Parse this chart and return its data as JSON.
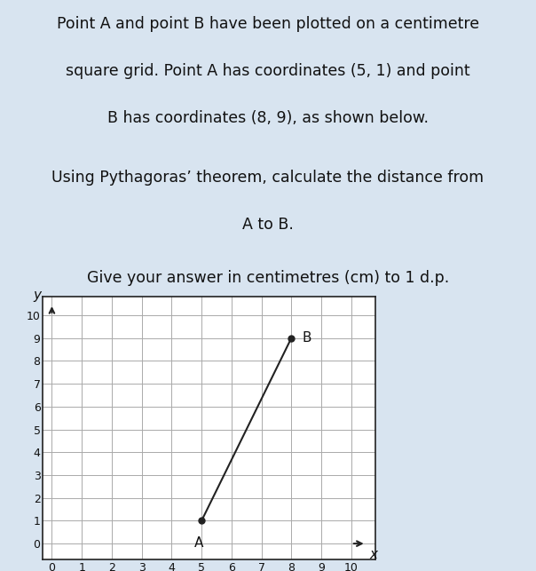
{
  "title_line1": "Point A and point B have been plotted on a centimetre",
  "title_line2": "square grid. Point A has coordinates (5, 1) and point",
  "title_line3": "B has coordinates (8, 9), as shown below.",
  "subtitle_line1": "Using Pythagoras’ theorem, calculate the distance from",
  "subtitle_line2": "A to B.",
  "instruction": "Give your answer in centimetres (cm) to 1 d.p.",
  "point_A": [
    5,
    1
  ],
  "point_B": [
    8,
    9
  ],
  "label_A": "A",
  "label_B": "B",
  "xlim": [
    0,
    10
  ],
  "ylim": [
    0,
    10
  ],
  "grid_color": "#aaaaaa",
  "line_color": "#222222",
  "point_color": "#222222",
  "background_color": "#d8e4f0",
  "text_color": "#111111",
  "axis_label_x": "x",
  "axis_label_y": "y",
  "fig_bg_color": "#d8e4f0"
}
